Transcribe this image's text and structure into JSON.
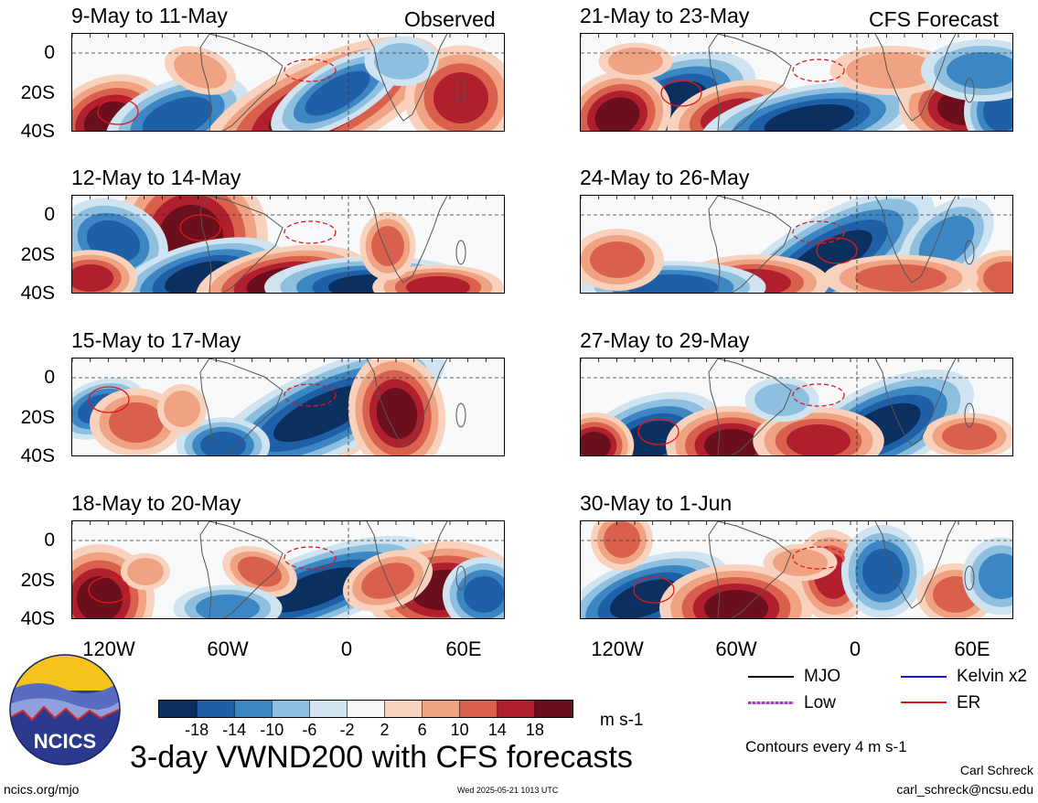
{
  "panels": {
    "observed_tag": "Observed",
    "forecast_tag": "CFS Forecast",
    "titles_left": [
      "9-May to 11-May",
      "12-May to 14-May",
      "15-May to 17-May",
      "18-May to 20-May"
    ],
    "titles_right": [
      "21-May to 23-May",
      "24-May to 26-May",
      "27-May to 29-May",
      "30-May to 1-Jun"
    ]
  },
  "axes": {
    "y_ticks": [
      "0",
      "20S",
      "40S"
    ],
    "x_ticks": [
      "120W",
      "60W",
      "0",
      "60E"
    ]
  },
  "colorbar": {
    "labels": [
      "-18",
      "-14",
      "-10",
      "-6",
      "-2",
      "2",
      "6",
      "10",
      "14",
      "18"
    ],
    "colors": [
      "#0b2f5e",
      "#1f5fa8",
      "#3b86c3",
      "#8fbfdf",
      "#cfe3f0",
      "#f8f8f8",
      "#f8d2bd",
      "#f0a382",
      "#d8604d",
      "#b01f2e",
      "#6b0f1d"
    ],
    "units": "m s-1"
  },
  "legend": {
    "mjo": "MJO",
    "kelvin": "Kelvin x2",
    "low": "Low",
    "er": "ER",
    "colors": {
      "mjo": "#000000",
      "kelvin": "#1515e6",
      "low": "#a040c8",
      "er": "#e01818"
    }
  },
  "footer": {
    "logo_text": "NCICS",
    "main_title": "3-day VWND200 with CFS forecasts",
    "contours_note": "Contours every 4 m s-1",
    "author": "Carl Schreck",
    "email": "carl_schreck@ncsu.edu",
    "url": "ncics.org/mjo",
    "timestamp": "Wed 2025-05-21 1013 UTC"
  }
}
